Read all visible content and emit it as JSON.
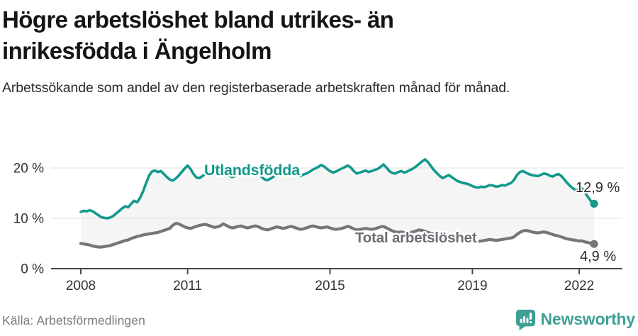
{
  "header": {
    "title": "Högre arbetslöshet bland utrikes- än inrikesfödda i Ängelholm",
    "subtitle": "Arbetssökande som andel av den registerbaserade arbetskraften månad för månad."
  },
  "footer": {
    "source": "Källa: Arbetsförmedlingen",
    "brand": "Newsworthy"
  },
  "colors": {
    "series_foreign": "#12998b",
    "series_total": "#76757b",
    "fill_between": "#f5f5f6",
    "gridline": "#e5e5e5",
    "axis": "#4a4a4a",
    "tick_text": "#333333",
    "end_label_text": "#2b2b2b",
    "logo_teal": "#3e9f95"
  },
  "chart_data": {
    "type": "line",
    "title": "Högre arbetslöshet bland utrikes- än inrikesfödda i Ängelholm",
    "x_start": "2008-01",
    "x_end": "2022-06",
    "x_interval": "monthly",
    "x_ticks": [
      2008,
      2011,
      2015,
      2019,
      2022
    ],
    "y_ticks": [
      {
        "v": 0,
        "label": "0 %"
      },
      {
        "v": 10,
        "label": "10 %"
      },
      {
        "v": 20,
        "label": "20 %"
      }
    ],
    "ylim": [
      0,
      26
    ],
    "grid": "horizontal",
    "fill_between_series": true,
    "series": [
      {
        "name": "Utlandsfödda",
        "end_label": "12,9 %",
        "values": [
          11.3,
          11.5,
          11.4,
          11.6,
          11.4,
          11.0,
          10.6,
          10.2,
          10.1,
          10.0,
          10.2,
          10.5,
          11.0,
          11.5,
          12.0,
          12.4,
          12.2,
          12.9,
          13.5,
          13.2,
          14.1,
          15.4,
          17.0,
          18.5,
          19.3,
          19.5,
          19.2,
          19.4,
          18.8,
          18.2,
          17.7,
          17.5,
          17.9,
          18.5,
          19.2,
          19.9,
          20.5,
          19.8,
          18.8,
          18.1,
          18.0,
          18.4,
          18.8,
          19.2,
          19.0,
          19.4,
          19.7,
          19.8,
          19.5,
          19.0,
          18.5,
          18.2,
          18.4,
          18.8,
          19.1,
          19.4,
          19.2,
          19.5,
          19.6,
          19.4,
          18.9,
          18.2,
          17.7,
          17.6,
          17.9,
          18.3,
          18.7,
          19.0,
          18.8,
          19.1,
          19.3,
          19.2,
          18.9,
          18.6,
          18.4,
          18.7,
          18.9,
          19.2,
          19.6,
          19.9,
          20.2,
          20.6,
          20.3,
          19.8,
          19.4,
          19.1,
          19.3,
          19.6,
          19.9,
          20.2,
          20.5,
          20.1,
          19.4,
          18.9,
          19.1,
          19.3,
          19.5,
          19.2,
          19.4,
          19.6,
          19.8,
          20.2,
          20.7,
          20.1,
          19.4,
          19.0,
          18.9,
          19.2,
          19.4,
          19.1,
          19.3,
          19.6,
          19.9,
          20.3,
          20.8,
          21.3,
          21.7,
          21.2,
          20.4,
          19.6,
          19.0,
          18.4,
          18.0,
          18.3,
          18.6,
          18.2,
          17.8,
          17.4,
          17.2,
          17.0,
          16.9,
          16.7,
          16.4,
          16.2,
          16.1,
          16.3,
          16.2,
          16.4,
          16.6,
          16.5,
          16.3,
          16.4,
          16.6,
          16.5,
          16.8,
          17.0,
          17.6,
          18.6,
          19.2,
          19.4,
          19.1,
          18.8,
          18.6,
          18.5,
          18.4,
          18.6,
          18.9,
          18.8,
          18.5,
          18.3,
          18.6,
          18.8,
          18.4,
          17.7,
          17.0,
          16.4,
          15.9,
          15.6,
          15.7,
          15.9,
          15.1,
          14.2,
          13.4,
          12.9
        ]
      },
      {
        "name": "Total arbetslöshet",
        "end_label": "4,9 %",
        "values": [
          5.0,
          4.9,
          4.8,
          4.7,
          4.5,
          4.4,
          4.3,
          4.3,
          4.4,
          4.5,
          4.6,
          4.8,
          5.0,
          5.2,
          5.4,
          5.6,
          5.7,
          6.0,
          6.2,
          6.4,
          6.5,
          6.7,
          6.8,
          6.9,
          7.0,
          7.1,
          7.2,
          7.4,
          7.6,
          7.8,
          8.0,
          8.6,
          9.0,
          8.9,
          8.6,
          8.3,
          8.1,
          8.0,
          8.2,
          8.4,
          8.6,
          8.7,
          8.8,
          8.6,
          8.4,
          8.2,
          8.3,
          8.5,
          8.9,
          8.6,
          8.3,
          8.1,
          8.2,
          8.4,
          8.5,
          8.3,
          8.1,
          8.2,
          8.4,
          8.5,
          8.3,
          8.0,
          7.8,
          7.7,
          7.9,
          8.1,
          8.3,
          8.2,
          8.0,
          8.1,
          8.3,
          8.4,
          8.2,
          8.0,
          7.8,
          7.9,
          8.1,
          8.3,
          8.5,
          8.4,
          8.2,
          8.1,
          8.2,
          8.3,
          8.1,
          7.9,
          7.8,
          7.9,
          8.0,
          8.2,
          8.4,
          8.2,
          7.9,
          7.7,
          7.8,
          7.9,
          8.0,
          7.9,
          7.8,
          7.9,
          8.1,
          8.3,
          8.4,
          8.1,
          7.8,
          7.5,
          7.3,
          7.2,
          7.3,
          7.2,
          7.1,
          7.2,
          7.3,
          7.5,
          7.7,
          7.6,
          7.4,
          7.2,
          7.0,
          6.9,
          6.8,
          6.6,
          6.4,
          6.3,
          6.4,
          6.5,
          6.4,
          6.2,
          6.0,
          5.9,
          5.8,
          5.7,
          5.6,
          5.5,
          5.4,
          5.5,
          5.6,
          5.7,
          5.8,
          5.7,
          5.6,
          5.7,
          5.8,
          5.9,
          6.0,
          6.1,
          6.3,
          6.8,
          7.2,
          7.5,
          7.6,
          7.5,
          7.3,
          7.2,
          7.1,
          7.2,
          7.3,
          7.2,
          7.0,
          6.8,
          6.6,
          6.5,
          6.3,
          6.1,
          5.9,
          5.8,
          5.7,
          5.6,
          5.5,
          5.5,
          5.3,
          5.2,
          5.0,
          4.9
        ]
      }
    ]
  }
}
